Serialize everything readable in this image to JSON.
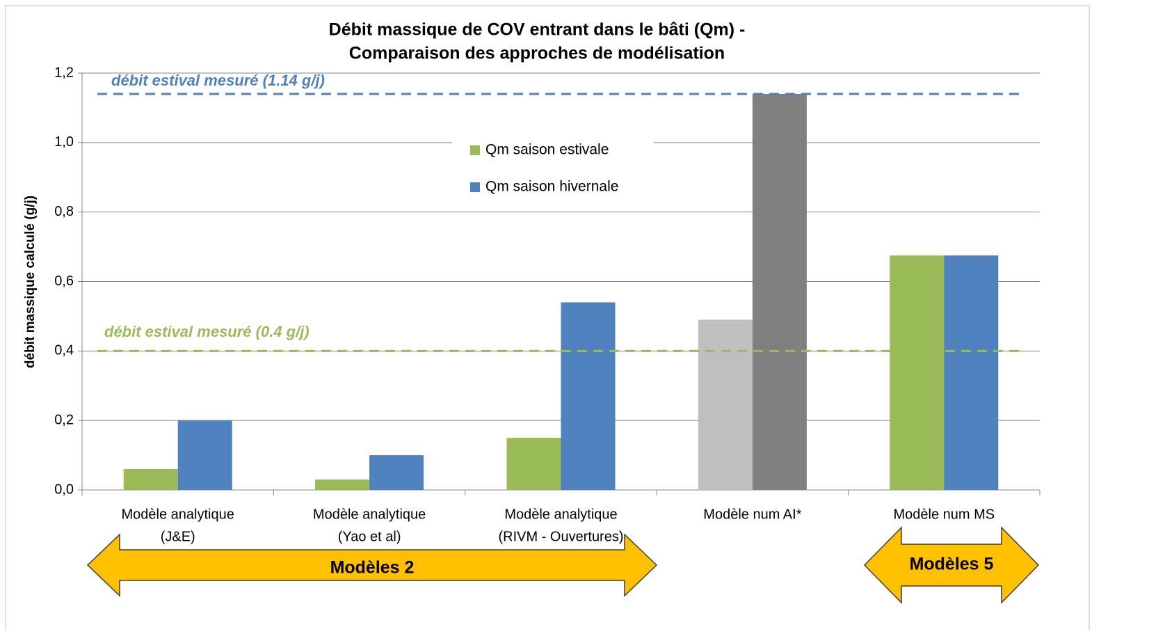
{
  "chart_data": {
    "type": "bar",
    "title": [
      "Débit massique de COV entrant dans le bâti (Qm) -",
      "Comparaison des approches de modélisation"
    ],
    "y_label": "débit  massique calculé  (g/j)",
    "categories": [
      [
        "Modèle analytique",
        "(J&E)"
      ],
      [
        "Modèle analytique",
        "(Yao et al)"
      ],
      [
        "Modèle analytique",
        "(RIVM - Ouvertures)"
      ],
      [
        "Modèle num AI*"
      ],
      [
        "Modèle num MS"
      ]
    ],
    "series": [
      {
        "name": "Qm saison estivale",
        "color": "#9bbb59",
        "point_colors": [
          "#9bbb59",
          "#9bbb59",
          "#9bbb59",
          "#bfbfbf",
          "#9bbb59"
        ],
        "values": [
          0.06,
          0.03,
          0.15,
          0.49,
          0.675
        ]
      },
      {
        "name": "Qm saison hivernale",
        "color": "#4f81bd",
        "point_colors": [
          "#4f81bd",
          "#4f81bd",
          "#4f81bd",
          "#808080",
          "#4f81bd"
        ],
        "values": [
          0.2,
          0.1,
          0.54,
          1.14,
          0.675
        ]
      }
    ],
    "ylim": [
      0,
      1.2
    ],
    "yticks": [
      {
        "value": 0,
        "label": "0,0"
      },
      {
        "value": 0.2,
        "label": "0,2"
      },
      {
        "value": 0.4,
        "label": "0,4"
      },
      {
        "value": 0.6,
        "label": "0,6"
      },
      {
        "value": 0.8,
        "label": "0,8"
      },
      {
        "value": 1.0,
        "label": "1,0"
      },
      {
        "value": 1.2,
        "label": "1,2"
      }
    ],
    "grid": true,
    "legend": "top-center",
    "reference_lines": [
      {
        "value": 1.14,
        "label": "débit estival mesuré (1.14 g/j)",
        "color": "#4f81bd"
      },
      {
        "value": 0.4,
        "label": "débit estival mesuré (0.4 g/j)",
        "color": "#9bbb59"
      }
    ],
    "annotations": [
      "Modèles 2",
      "Modèles 5"
    ]
  }
}
